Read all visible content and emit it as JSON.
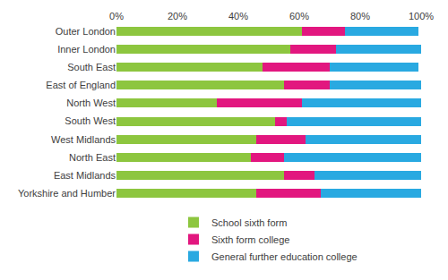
{
  "chart_data": {
    "type": "bar",
    "orientation": "horizontal",
    "stacked": true,
    "grid": false,
    "legend": "bottom",
    "categories": [
      "Outer London",
      "Inner London",
      "South East",
      "East of England",
      "North West",
      "South West",
      "West Midlands",
      "North East",
      "East Midlands",
      "Yorkshire and Humber"
    ],
    "series": [
      {
        "name": "School sixth form",
        "color": "#8dc63f",
        "values": [
          61,
          57,
          48,
          55,
          33,
          52,
          46,
          44,
          55,
          46
        ]
      },
      {
        "name": "Sixth form college",
        "color": "#e2177f",
        "values": [
          14,
          15,
          22,
          15,
          28,
          4,
          16,
          11,
          10,
          21
        ]
      },
      {
        "name": "General further education college",
        "color": "#29a9e1",
        "values": [
          24,
          28,
          29,
          30,
          39,
          44,
          38,
          45,
          35,
          33
        ]
      }
    ],
    "xlim": [
      0,
      100
    ],
    "xticks": [
      {
        "value": 0,
        "label": "0%"
      },
      {
        "value": 20,
        "label": "20%"
      },
      {
        "value": 40,
        "label": "40%"
      },
      {
        "value": 60,
        "label": "60%"
      },
      {
        "value": 80,
        "label": "80%"
      },
      {
        "value": 100,
        "label": "100%"
      }
    ]
  }
}
